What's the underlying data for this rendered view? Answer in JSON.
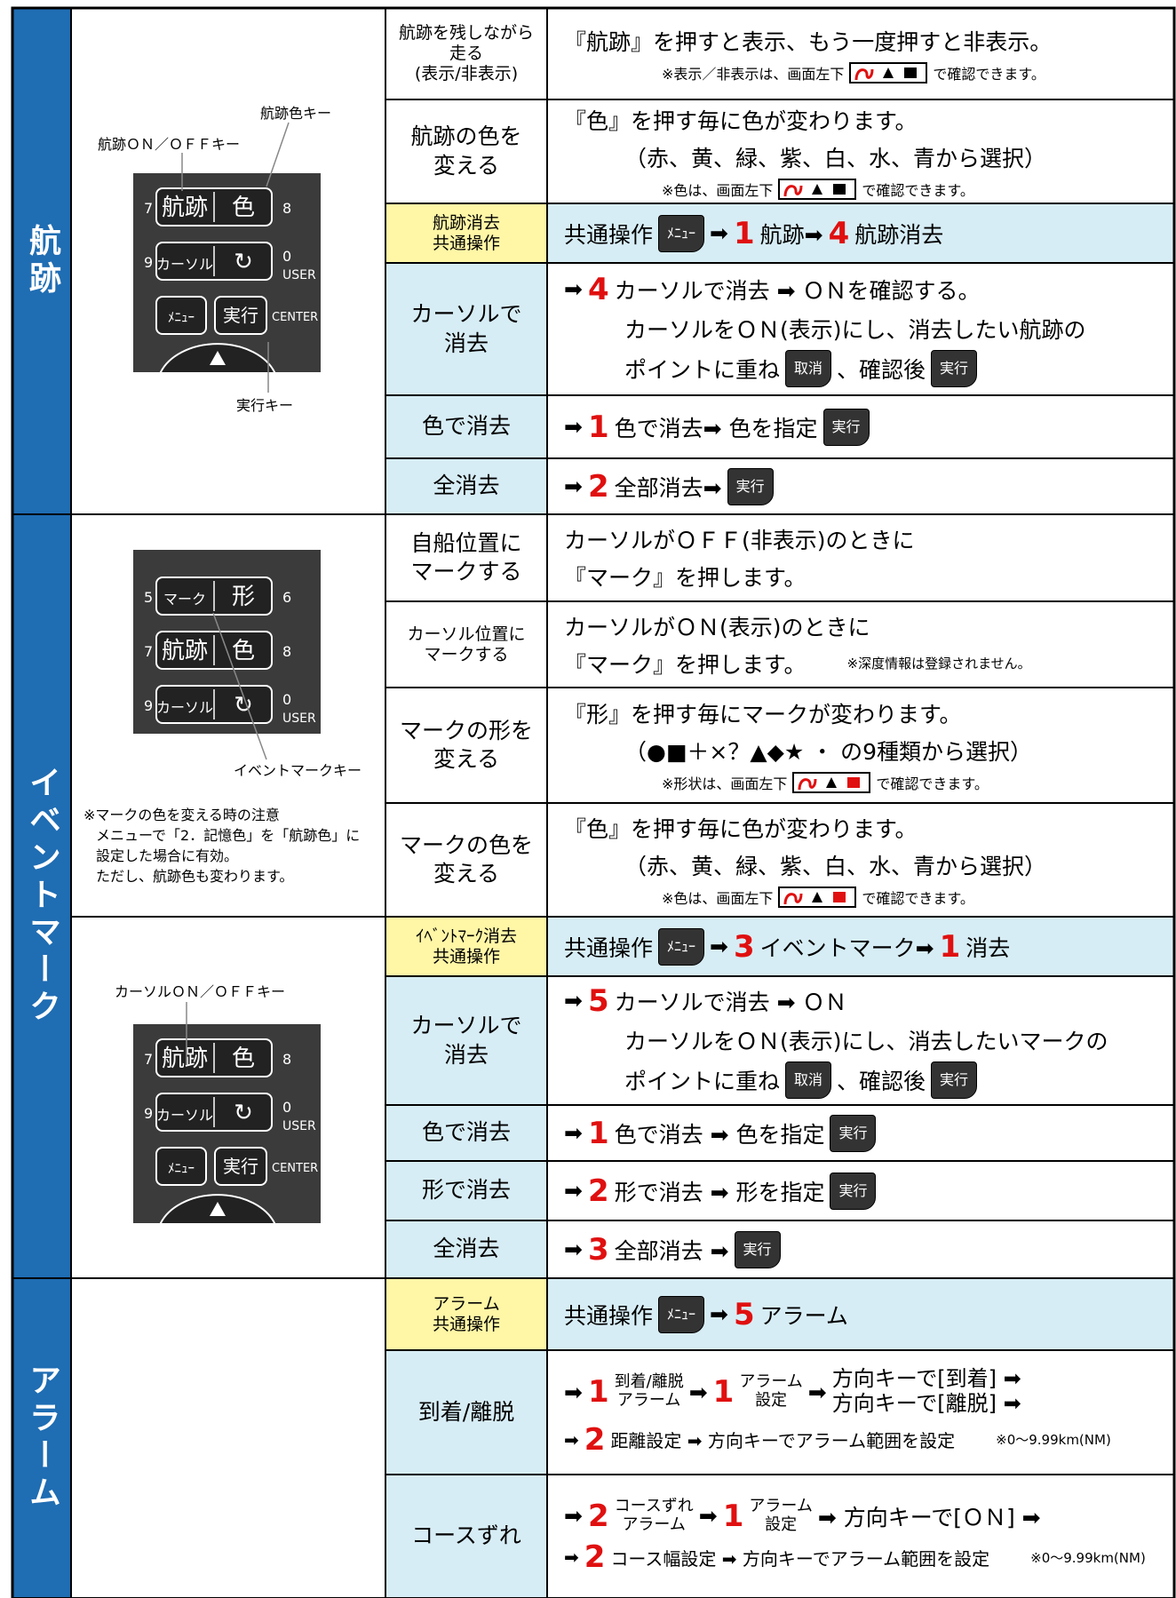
{
  "sections": [
    {
      "title": "航跡",
      "panels": [
        {
          "remote": {
            "rows": [
              {
                "left": "7",
                "keys": [
                  "航跡",
                  "色"
                ],
                "right": "8"
              },
              {
                "left": "9",
                "keys": [
                  "カーソル",
                  "↻"
                ],
                "right": "0",
                "sub": "USER"
              },
              {
                "keys": [
                  "ﾒﾆｭｰ",
                  "実行"
                ],
                "right": "CENTER"
              }
            ]
          },
          "callouts": [
            "航跡色キー",
            "航跡ＯＮ／ＯＦＦキー",
            "実行キー"
          ],
          "rows": [
            {
              "label": [
                "航跡を残しながら",
                "走る",
                "(表示/非表示)"
              ],
              "lines": [
                {
                  "segments": [
                    {
                      "text": "『航跡』を押すと表示、もう一度押すと非表示。"
                    }
                  ]
                },
                {
                  "before": "※表示／非表示は、画面左下",
                  "after": "で確認できます。"
                }
              ]
            },
            {
              "label": [
                "航跡の色を",
                "変える"
              ],
              "lines": [
                {
                  "segments": [
                    {
                      "text": "『色』を押す毎に色が変わります。"
                    }
                  ]
                },
                {
                  "segments": [
                    {
                      "text": "（赤、黄、緑、紫、白、水、青から選択）"
                    }
                  ]
                },
                {
                  "before": "※色は、画面左下",
                  "after": "で確認できます。"
                }
              ]
            },
            {
              "highlight": true,
              "label": [
                "航跡消去",
                "共通操作"
              ],
              "lines": [
                {
                  "segments": [
                    {
                      "text": "共通操作"
                    },
                    {
                      "key": "ﾒﾆｭｰ"
                    },
                    {
                      "text": "➡"
                    },
                    {
                      "num": "1"
                    },
                    {
                      "text": "航跡➡"
                    },
                    {
                      "num": "4"
                    },
                    {
                      "text": "航跡消去"
                    }
                  ]
                }
              ]
            },
            {
              "label": [
                "カーソルで",
                "消去"
              ],
              "lines": [
                {
                  "segments": [
                    {
                      "text": "➡"
                    },
                    {
                      "num": "4"
                    },
                    {
                      "text": "カーソルで消去 ➡ ＯＮを確認する。"
                    }
                  ]
                },
                {
                  "segments": [
                    {
                      "text": "カーソルをＯＮ(表示)にし、消去したい航跡の"
                    }
                  ]
                },
                {
                  "segments": [
                    {
                      "text": "ポイントに重ね"
                    },
                    {
                      "key": "取消"
                    },
                    {
                      "text": "、確認後"
                    },
                    {
                      "key": "実行"
                    }
                  ]
                }
              ]
            },
            {
              "label": [
                "色で消去"
              ],
              "lines": [
                {
                  "segments": [
                    {
                      "text": "➡"
                    },
                    {
                      "num": "1"
                    },
                    {
                      "text": "色で消去➡ 色を指定"
                    },
                    {
                      "key": "実行"
                    }
                  ]
                }
              ]
            },
            {
              "label": [
                "全消去"
              ],
              "lines": [
                {
                  "segments": [
                    {
                      "text": "➡"
                    },
                    {
                      "num": "2"
                    },
                    {
                      "text": "全部消去➡"
                    },
                    {
                      "key": "実行"
                    }
                  ]
                }
              ]
            }
          ]
        }
      ]
    },
    {
      "title": "イベントマーク",
      "panels": [
        {
          "remote": {
            "rows": [
              {
                "left": "5",
                "keys": [
                  "マーク",
                  "形"
                ],
                "right": "6"
              },
              {
                "left": "7",
                "keys": [
                  "航跡",
                  "色"
                ],
                "right": "8"
              },
              {
                "left": "9",
                "keys": [
                  "カーソル",
                  "↻"
                ],
                "right": "0",
                "sub": "USER"
              }
            ]
          },
          "callouts": [
            "イベントマークキー"
          ],
          "notes": [
            "※マークの色を変える時の注意",
            "メニューで「2．記憶色」を「航跡色」に",
            "設定した場合に有効。",
            "ただし、航跡色も変わります。"
          ],
          "rows": [
            {
              "label": [
                "自船位置に",
                "マークする"
              ],
              "lines": [
                {
                  "segments": [
                    {
                      "text": "カーソルがＯＦＦ(非表示)のときに"
                    }
                  ]
                },
                {
                  "segments": [
                    {
                      "text": "『マーク』を押します。"
                    }
                  ]
                }
              ]
            },
            {
              "label": [
                "カーソル位置に",
                "マークする"
              ],
              "lines": [
                {
                  "segments": [
                    {
                      "text": "カーソルがＯＮ(表示)のときに"
                    }
                  ]
                },
                {
                  "segments": [
                    {
                      "text": "『マーク』を押します。"
                    },
                    {
                      "small": "※深度情報は登録されません。"
                    }
                  ]
                }
              ]
            },
            {
              "label": [
                "マークの形を",
                "変える"
              ],
              "lines": [
                {
                  "segments": [
                    {
                      "text": "『形』を押す毎にマークが変わります。"
                    }
                  ]
                },
                {
                  "segments": [
                    {
                      "text": "（●■＋×？▲◆★ ・ の9種類から選択）"
                    }
                  ]
                },
                {
                  "before": "※形状は、画面左下",
                  "after": "で確認できます。"
                }
              ]
            },
            {
              "label": [
                "マークの色を",
                "変える"
              ],
              "lines": [
                {
                  "segments": [
                    {
                      "text": "『色』を押す毎に色が変わります。"
                    }
                  ]
                },
                {
                  "segments": [
                    {
                      "text": "（赤、黄、緑、紫、白、水、青から選択）"
                    }
                  ]
                },
                {
                  "before": "※色は、画面左下",
                  "after": "で確認できます。"
                }
              ]
            }
          ]
        },
        {
          "remote": {
            "rows": [
              {
                "left": "7",
                "keys": [
                  "航跡",
                  "色"
                ],
                "right": "8"
              },
              {
                "left": "9",
                "keys": [
                  "カーソル",
                  "↻"
                ],
                "right": "0",
                "sub": "USER"
              },
              {
                "keys": [
                  "ﾒﾆｭｰ",
                  "実行"
                ],
                "right": "CENTER"
              }
            ]
          },
          "callouts": [
            "カーソルＯＮ／ＯＦＦキー"
          ],
          "rows": [
            {
              "highlight": true,
              "label": [
                "ｲﾍﾞﾝﾄﾏｰｸ消去",
                "共通操作"
              ],
              "lines": [
                {
                  "segments": [
                    {
                      "text": "共通操作"
                    },
                    {
                      "key": "ﾒﾆｭｰ"
                    },
                    {
                      "text": "➡"
                    },
                    {
                      "num": "3"
                    },
                    {
                      "text": "イベントマーク➡"
                    },
                    {
                      "num": "1"
                    },
                    {
                      "text": "消去"
                    }
                  ]
                }
              ]
            },
            {
              "label": [
                "カーソルで",
                "消去"
              ],
              "lines": [
                {
                  "segments": [
                    {
                      "text": "➡"
                    },
                    {
                      "num": "5"
                    },
                    {
                      "text": "カーソルで消去 ➡ ＯＮ"
                    }
                  ]
                },
                {
                  "segments": [
                    {
                      "text": "カーソルをＯＮ(表示)にし、消去したいマークの"
                    }
                  ]
                },
                {
                  "segments": [
                    {
                      "text": "ポイントに重ね"
                    },
                    {
                      "key": "取消"
                    },
                    {
                      "text": "、確認後"
                    },
                    {
                      "key": "実行"
                    }
                  ]
                }
              ]
            },
            {
              "label": [
                "色で消去"
              ],
              "lines": [
                {
                  "segments": [
                    {
                      "text": "➡"
                    },
                    {
                      "num": "1"
                    },
                    {
                      "text": "色で消去 ➡ 色を指定"
                    },
                    {
                      "key": "実行"
                    }
                  ]
                }
              ]
            },
            {
              "label": [
                "形で消去"
              ],
              "lines": [
                {
                  "segments": [
                    {
                      "text": "➡"
                    },
                    {
                      "num": "2"
                    },
                    {
                      "text": "形で消去 ➡ 形を指定"
                    },
                    {
                      "key": "実行"
                    }
                  ]
                }
              ]
            },
            {
              "label": [
                "全消去"
              ],
              "lines": [
                {
                  "segments": [
                    {
                      "text": "➡"
                    },
                    {
                      "num": "3"
                    },
                    {
                      "text": "全部消去 ➡"
                    },
                    {
                      "key": "実行"
                    }
                  ]
                }
              ]
            }
          ]
        }
      ]
    },
    {
      "title": "アラーム",
      "panels": [
        {
          "rows": [
            {
              "highlight": true,
              "label": [
                "アラーム",
                "共通操作"
              ],
              "lines": [
                {
                  "segments": [
                    {
                      "text": "共通操作"
                    },
                    {
                      "key": "ﾒﾆｭｰ"
                    },
                    {
                      "text": "➡"
                    },
                    {
                      "num": "5"
                    },
                    {
                      "text": "アラーム"
                    }
                  ]
                }
              ]
            },
            {
              "label": [
                "到着/離脱"
              ],
              "lines": [
                {
                  "segments": [
                    {
                      "text": "➡"
                    },
                    {
                      "num": "1"
                    },
                    {
                      "stack": [
                        "到着/離脱",
                        "アラーム"
                      ]
                    },
                    {
                      "text": "➡"
                    },
                    {
                      "num": "1"
                    },
                    {
                      "stack": [
                        "アラーム",
                        "設定"
                      ]
                    },
                    {
                      "text": "➡"
                    },
                    {
                      "stack": [
                        "方向キーで[到着] ➡",
                        "方向キーで[離脱] ➡"
                      ]
                    }
                  ]
                },
                {
                  "segments": [
                    {
                      "text": "➡"
                    },
                    {
                      "num": "2"
                    },
                    {
                      "text": "距離設定 ➡ 方向キーでアラーム範囲を設定"
                    },
                    {
                      "small": "※0～9.99km(NM)"
                    }
                  ]
                }
              ]
            },
            {
              "label": [
                "コースずれ"
              ],
              "lines": [
                {
                  "segments": [
                    {
                      "text": "➡"
                    },
                    {
                      "num": "2"
                    },
                    {
                      "stack": [
                        "コースずれ",
                        "アラーム"
                      ]
                    },
                    {
                      "text": "➡"
                    },
                    {
                      "num": "1"
                    },
                    {
                      "stack": [
                        "アラーム",
                        "設定"
                      ]
                    },
                    {
                      "text": "➡ 方向キーで[ＯＮ] ➡"
                    }
                  ]
                },
                {
                  "segments": [
                    {
                      "text": "➡"
                    },
                    {
                      "num": "2"
                    },
                    {
                      "text": "コース幅設定 ➡ 方向キーでアラーム範囲を設定"
                    },
                    {
                      "small": "※0～9.99km(NM)"
                    }
                  ]
                }
              ]
            }
          ]
        }
      ]
    }
  ]
}
